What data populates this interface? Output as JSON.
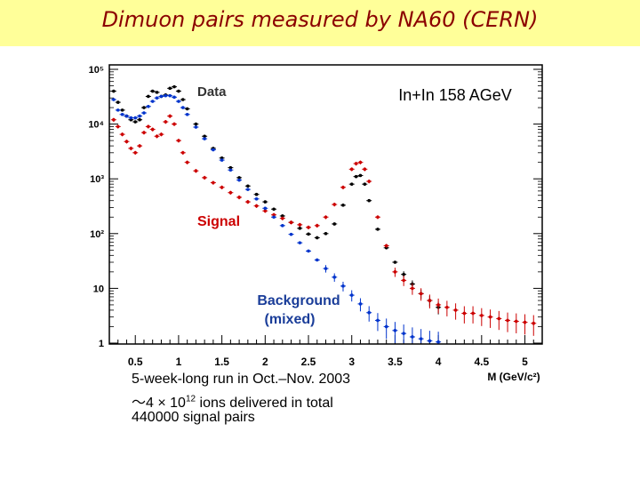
{
  "title": "Dimuon pairs measured by NA60 (CERN)",
  "notes": {
    "line1": "5-week-long run in Oct.–Nov. 2003",
    "line2_prefix": "～4 × 10",
    "line2_exp": "12",
    "line2_suffix": " ions delivered in total",
    "line3": "440000 signal pairs"
  },
  "chart_data": {
    "type": "scatter",
    "title": "",
    "annotation": "In+In 158 AGeV",
    "xlabel": "M (GeV/c²)",
    "ylabel": "",
    "xlim": [
      0.2,
      5.2
    ],
    "ylim": [
      1,
      100000
    ],
    "yscale": "log",
    "x_ticks": [
      "0.5",
      "1",
      "1.5",
      "2",
      "2.5",
      "3",
      "3.5",
      "4",
      "4.5",
      "5"
    ],
    "x_tick_values": [
      0.5,
      1,
      1.5,
      2,
      2.5,
      3,
      3.5,
      4,
      4.5,
      5
    ],
    "y_ticks": [
      "10⁵",
      "10⁴",
      "10³",
      "10²",
      "10",
      "1"
    ],
    "y_tick_values": [
      100000,
      10000,
      1000,
      100,
      10,
      1
    ],
    "grid": false,
    "series": [
      {
        "name": "Data",
        "color": "#000000",
        "x": [
          0.25,
          0.3,
          0.35,
          0.4,
          0.45,
          0.5,
          0.55,
          0.6,
          0.65,
          0.7,
          0.75,
          0.8,
          0.85,
          0.9,
          0.95,
          1.0,
          1.05,
          1.1,
          1.2,
          1.3,
          1.4,
          1.5,
          1.6,
          1.7,
          1.8,
          1.9,
          2.0,
          2.1,
          2.2,
          2.3,
          2.4,
          2.5,
          2.6,
          2.7,
          2.8,
          2.9,
          3.0,
          3.05,
          3.1,
          3.15,
          3.2,
          3.3,
          3.4,
          3.5,
          3.6,
          3.7,
          3.8,
          3.9,
          4.0
        ],
        "y": [
          40000,
          25000,
          18000,
          14000,
          12000,
          11000,
          12000,
          20000,
          32000,
          40000,
          38000,
          32000,
          34000,
          45000,
          48000,
          40000,
          28000,
          19000,
          10000,
          6000,
          3600,
          2400,
          1600,
          1050,
          740,
          520,
          380,
          280,
          210,
          160,
          125,
          98,
          84,
          100,
          150,
          330,
          800,
          1100,
          1150,
          800,
          400,
          120,
          55,
          30,
          18,
          12,
          8,
          6,
          4.5
        ]
      },
      {
        "name": "Signal",
        "color": "#cc0000",
        "x": [
          0.25,
          0.3,
          0.35,
          0.4,
          0.45,
          0.5,
          0.55,
          0.6,
          0.65,
          0.7,
          0.75,
          0.8,
          0.85,
          0.9,
          0.95,
          1.0,
          1.05,
          1.1,
          1.2,
          1.3,
          1.4,
          1.5,
          1.6,
          1.7,
          1.8,
          1.9,
          2.0,
          2.1,
          2.2,
          2.3,
          2.4,
          2.5,
          2.6,
          2.7,
          2.8,
          2.9,
          3.0,
          3.05,
          3.1,
          3.15,
          3.2,
          3.3,
          3.4,
          3.5,
          3.6,
          3.7,
          3.8,
          3.9,
          4.0,
          4.1,
          4.2,
          4.3,
          4.4,
          4.5,
          4.6,
          4.7,
          4.8,
          4.9,
          5.0,
          5.1
        ],
        "y": [
          12000,
          9000,
          6500,
          4800,
          3600,
          3000,
          4000,
          7000,
          9000,
          8000,
          6000,
          6500,
          11000,
          14000,
          10000,
          5000,
          3000,
          2000,
          1400,
          1050,
          850,
          700,
          560,
          460,
          380,
          320,
          260,
          220,
          190,
          160,
          145,
          130,
          140,
          200,
          340,
          700,
          1500,
          1900,
          2000,
          1500,
          900,
          200,
          60,
          20,
          14,
          10,
          8,
          6,
          5,
          4.5,
          4,
          3.5,
          3.5,
          3.2,
          3,
          2.8,
          2.6,
          2.5,
          2.4,
          2.3
        ]
      },
      {
        "name": "Background (mixed)",
        "color": "#0033cc",
        "x": [
          0.25,
          0.3,
          0.35,
          0.4,
          0.45,
          0.5,
          0.55,
          0.6,
          0.65,
          0.7,
          0.75,
          0.8,
          0.85,
          0.9,
          0.95,
          1.0,
          1.05,
          1.1,
          1.2,
          1.3,
          1.4,
          1.5,
          1.6,
          1.7,
          1.8,
          1.9,
          2.0,
          2.1,
          2.2,
          2.3,
          2.4,
          2.5,
          2.6,
          2.7,
          2.8,
          2.9,
          3.0,
          3.1,
          3.2,
          3.3,
          3.4,
          3.5,
          3.6,
          3.7,
          3.8,
          3.9,
          4.0
        ],
        "y": [
          28000,
          18000,
          15000,
          14000,
          13000,
          13000,
          14000,
          16000,
          21000,
          26000,
          30000,
          32000,
          33000,
          33000,
          31000,
          26000,
          20000,
          15000,
          8800,
          5400,
          3400,
          2200,
          1450,
          950,
          640,
          430,
          290,
          200,
          140,
          97,
          68,
          48,
          33,
          23,
          16,
          11,
          7.5,
          5.2,
          3.6,
          2.6,
          2,
          1.7,
          1.5,
          1.3,
          1.2,
          1.1,
          1.05
        ]
      }
    ],
    "labels": {
      "data": "Data",
      "signal": "Signal",
      "background_line1": "Background",
      "background_line2": "(mixed)"
    }
  }
}
